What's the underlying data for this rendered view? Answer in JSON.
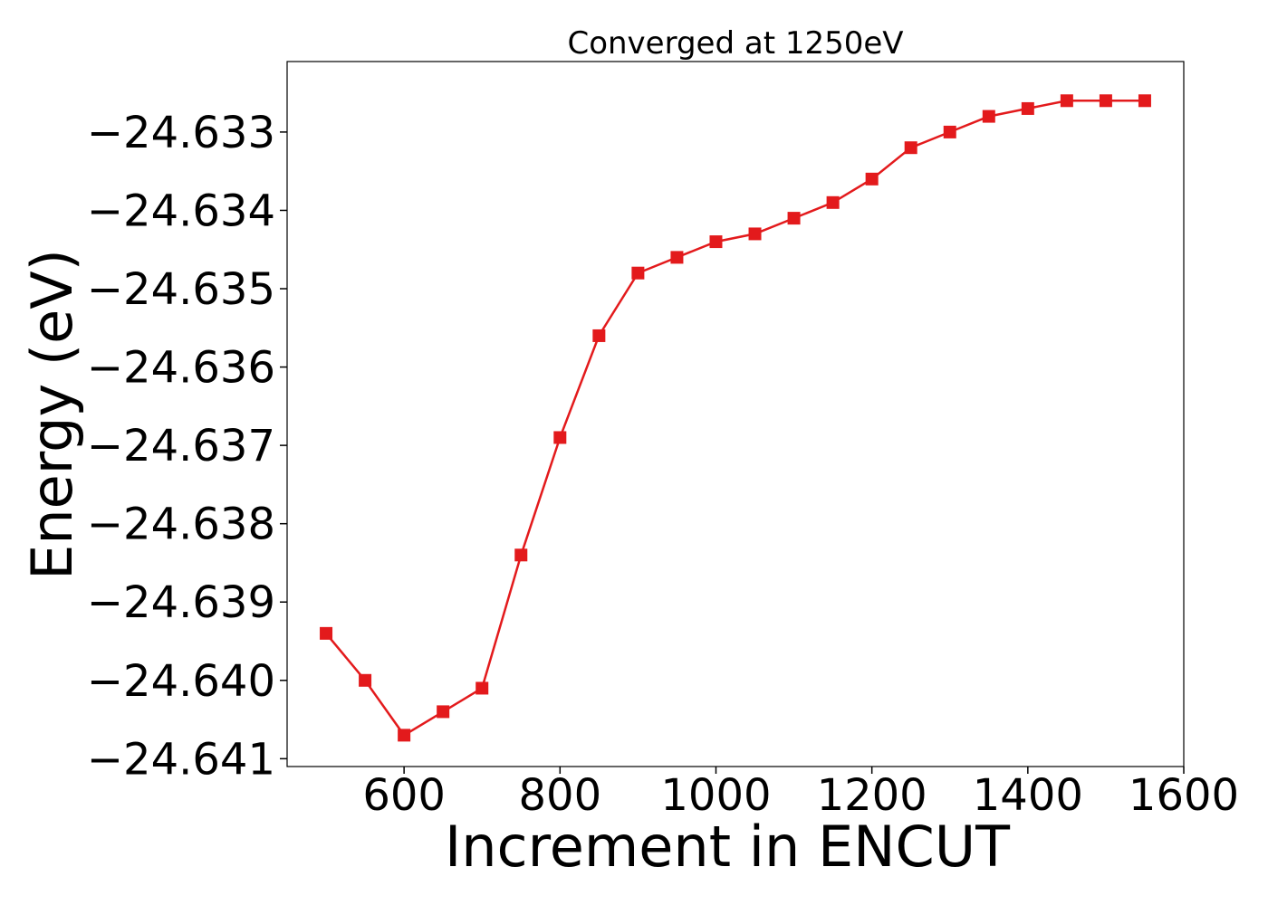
{
  "chart_data": {
    "type": "line",
    "title": "Converged at 1250eV",
    "xlabel": "Increment in ENCUT",
    "ylabel": "Energy (eV)",
    "xlim": [
      450,
      1600
    ],
    "ylim": [
      -24.6411,
      -24.6321
    ],
    "xticks": [
      600,
      800,
      1000,
      1200,
      1400,
      1600
    ],
    "xtick_labels": [
      "600",
      "800",
      "1000",
      "1200",
      "1400",
      "1600"
    ],
    "yticks": [
      -24.633,
      -24.634,
      -24.635,
      -24.636,
      -24.637,
      -24.638,
      -24.639,
      -24.64,
      -24.641
    ],
    "ytick_labels": [
      "−24.633",
      "−24.634",
      "−24.635",
      "−24.636",
      "−24.637",
      "−24.638",
      "−24.639",
      "−24.640",
      "−24.641"
    ],
    "grid": false,
    "series": [
      {
        "color": "#e31a1c",
        "marker": "square",
        "x": [
          500,
          550,
          600,
          650,
          700,
          750,
          800,
          850,
          900,
          950,
          1000,
          1050,
          1100,
          1150,
          1200,
          1250,
          1300,
          1350,
          1400,
          1450,
          1500,
          1550
        ],
        "y": [
          -24.6394,
          -24.64,
          -24.6407,
          -24.6404,
          -24.6401,
          -24.6384,
          -24.6369,
          -24.6356,
          -24.6348,
          -24.6346,
          -24.6344,
          -24.6343,
          -24.6341,
          -24.6339,
          -24.6336,
          -24.6332,
          -24.633,
          -24.6328,
          -24.6327,
          -24.6326,
          -24.6326,
          -24.6326
        ]
      }
    ]
  }
}
